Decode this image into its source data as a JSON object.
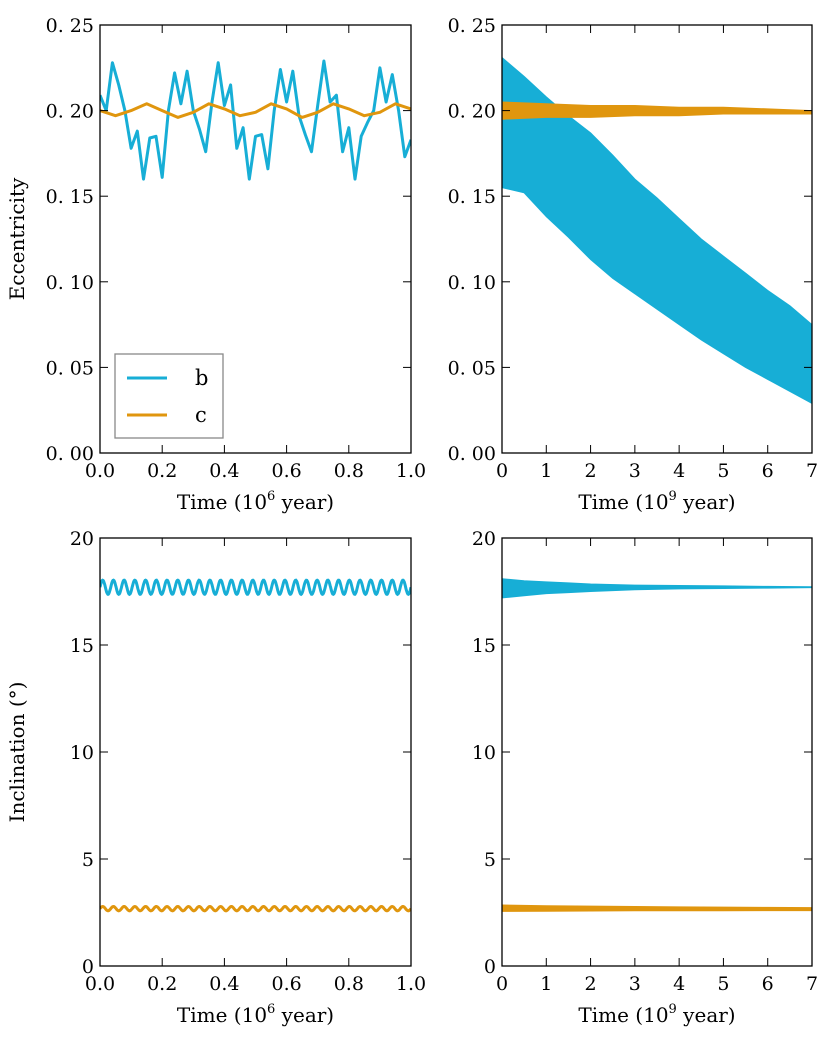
{
  "colors": {
    "b": "#17AED6",
    "c": "#E0960E"
  },
  "chart_data": [
    {
      "id": "ecc_short",
      "type": "line",
      "xlabel": "Time (10",
      "xlabel_exp": "6",
      "xlabel_tail": " year)",
      "ylabel": "Eccentricity",
      "xlim": [
        0.0,
        1.0
      ],
      "ylim": [
        0.0,
        0.25
      ],
      "xticks": [
        0.0,
        0.2,
        0.4,
        0.6,
        0.8,
        1.0
      ],
      "xtick_labels": [
        "0.0",
        "0.2",
        "0.4",
        "0.6",
        "0.8",
        "1.0"
      ],
      "yticks": [
        0.0,
        0.05,
        0.1,
        0.15,
        0.2,
        0.25
      ],
      "ytick_labels": [
        "0. 00",
        "0. 05",
        "0. 10",
        "0. 15",
        "0. 20",
        "0. 25"
      ],
      "legend": {
        "position": "lower-left",
        "entries": [
          "b",
          "c"
        ]
      },
      "series": [
        {
          "name": "b",
          "x": [
            0.0,
            0.02,
            0.04,
            0.06,
            0.08,
            0.1,
            0.12,
            0.14,
            0.16,
            0.18,
            0.2,
            0.22,
            0.24,
            0.26,
            0.28,
            0.3,
            0.32,
            0.34,
            0.36,
            0.38,
            0.4,
            0.42,
            0.44,
            0.46,
            0.48,
            0.5,
            0.52,
            0.54,
            0.56,
            0.58,
            0.6,
            0.62,
            0.64,
            0.66,
            0.68,
            0.7,
            0.72,
            0.74,
            0.76,
            0.78,
            0.8,
            0.82,
            0.84,
            0.86,
            0.88,
            0.9,
            0.92,
            0.94,
            0.96,
            0.98,
            1.0
          ],
          "y": [
            0.209,
            0.2,
            0.228,
            0.215,
            0.2,
            0.178,
            0.188,
            0.16,
            0.184,
            0.185,
            0.161,
            0.2,
            0.222,
            0.204,
            0.223,
            0.2,
            0.189,
            0.176,
            0.205,
            0.228,
            0.203,
            0.215,
            0.178,
            0.19,
            0.16,
            0.185,
            0.186,
            0.166,
            0.2,
            0.224,
            0.205,
            0.223,
            0.197,
            0.186,
            0.176,
            0.203,
            0.229,
            0.205,
            0.209,
            0.176,
            0.19,
            0.16,
            0.185,
            0.193,
            0.2,
            0.225,
            0.205,
            0.221,
            0.2,
            0.173,
            0.183
          ]
        },
        {
          "name": "c",
          "x": [
            0.0,
            0.05,
            0.1,
            0.15,
            0.2,
            0.25,
            0.3,
            0.35,
            0.4,
            0.45,
            0.5,
            0.55,
            0.6,
            0.65,
            0.7,
            0.75,
            0.8,
            0.85,
            0.9,
            0.95,
            1.0
          ],
          "y": [
            0.2,
            0.197,
            0.2,
            0.204,
            0.2,
            0.196,
            0.199,
            0.204,
            0.201,
            0.197,
            0.199,
            0.204,
            0.201,
            0.196,
            0.199,
            0.204,
            0.201,
            0.197,
            0.199,
            0.204,
            0.201
          ]
        }
      ]
    },
    {
      "id": "ecc_long",
      "type": "area",
      "xlabel": "Time (10",
      "xlabel_exp": "9",
      "xlabel_tail": " year)",
      "ylabel": "",
      "xlim": [
        0,
        7
      ],
      "ylim": [
        0.0,
        0.25
      ],
      "xticks": [
        0,
        1,
        2,
        3,
        4,
        5,
        6,
        7
      ],
      "xtick_labels": [
        "0",
        "1",
        "2",
        "3",
        "4",
        "5",
        "6",
        "7"
      ],
      "yticks": [
        0.0,
        0.05,
        0.1,
        0.15,
        0.2,
        0.25
      ],
      "ytick_labels": [
        "0. 00",
        "0. 05",
        "0. 10",
        "0. 15",
        "0. 20",
        "0. 25"
      ],
      "series": [
        {
          "name": "b",
          "x": [
            0.0,
            0.5,
            1.0,
            1.5,
            2.0,
            2.5,
            3.0,
            3.5,
            4.0,
            4.5,
            5.0,
            5.5,
            6.0,
            6.5,
            7.0
          ],
          "upper": [
            0.231,
            0.22,
            0.208,
            0.197,
            0.187,
            0.174,
            0.16,
            0.149,
            0.137,
            0.125,
            0.115,
            0.105,
            0.095,
            0.086,
            0.075
          ],
          "lower": [
            0.155,
            0.152,
            0.138,
            0.126,
            0.113,
            0.102,
            0.093,
            0.084,
            0.075,
            0.066,
            0.058,
            0.05,
            0.043,
            0.036,
            0.029
          ]
        },
        {
          "name": "c",
          "x": [
            0.0,
            1.0,
            2.0,
            3.0,
            4.0,
            5.0,
            6.0,
            7.0
          ],
          "upper": [
            0.205,
            0.204,
            0.203,
            0.203,
            0.202,
            0.202,
            0.201,
            0.2
          ],
          "lower": [
            0.195,
            0.196,
            0.196,
            0.197,
            0.197,
            0.198,
            0.198,
            0.198
          ]
        }
      ]
    },
    {
      "id": "inc_short",
      "type": "line",
      "xlabel": "Time (10",
      "xlabel_exp": "6",
      "xlabel_tail": " year)",
      "ylabel": "Inclination (°)",
      "xlim": [
        0.0,
        1.0
      ],
      "ylim": [
        0,
        20
      ],
      "xticks": [
        0.0,
        0.2,
        0.4,
        0.6,
        0.8,
        1.0
      ],
      "xtick_labels": [
        "0.0",
        "0.2",
        "0.4",
        "0.6",
        "0.8",
        "1.0"
      ],
      "yticks": [
        0,
        5,
        10,
        15,
        20
      ],
      "ytick_labels": [
        "0",
        "5",
        "10",
        "15",
        "20"
      ],
      "series": [
        {
          "name": "b",
          "mean": 17.7,
          "amplitude": 0.33,
          "cycles": 29
        },
        {
          "name": "c",
          "mean": 2.68,
          "amplitude": 0.1,
          "cycles": 29
        }
      ]
    },
    {
      "id": "inc_long",
      "type": "area",
      "xlabel": "Time (10",
      "xlabel_exp": "9",
      "xlabel_tail": " year)",
      "ylabel": "",
      "xlim": [
        0,
        7
      ],
      "ylim": [
        0,
        20
      ],
      "xticks": [
        0,
        1,
        2,
        3,
        4,
        5,
        6,
        7
      ],
      "xtick_labels": [
        "0",
        "1",
        "2",
        "3",
        "4",
        "5",
        "6",
        "7"
      ],
      "yticks": [
        0,
        5,
        10,
        15,
        20
      ],
      "ytick_labels": [
        "0",
        "5",
        "10",
        "15",
        "20"
      ],
      "series": [
        {
          "name": "b",
          "x": [
            0.0,
            0.5,
            1.0,
            1.5,
            2.0,
            3.0,
            4.0,
            5.0,
            6.0,
            7.0
          ],
          "upper": [
            18.1,
            18.0,
            17.95,
            17.9,
            17.85,
            17.8,
            17.78,
            17.76,
            17.74,
            17.72
          ],
          "lower": [
            17.2,
            17.3,
            17.4,
            17.45,
            17.5,
            17.58,
            17.62,
            17.64,
            17.66,
            17.68
          ]
        },
        {
          "name": "c",
          "x": [
            0.0,
            1.0,
            2.0,
            3.0,
            4.0,
            5.0,
            6.0,
            7.0
          ],
          "upper": [
            2.85,
            2.82,
            2.8,
            2.78,
            2.76,
            2.75,
            2.74,
            2.73
          ],
          "lower": [
            2.55,
            2.56,
            2.57,
            2.58,
            2.58,
            2.58,
            2.59,
            2.59
          ]
        }
      ]
    }
  ]
}
